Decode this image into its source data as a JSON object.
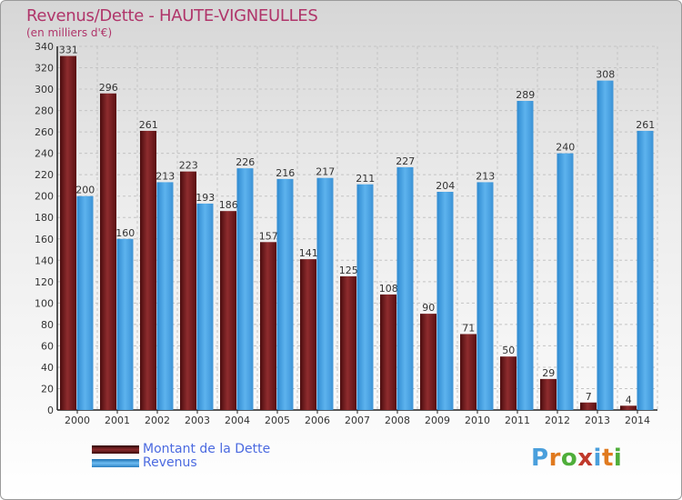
{
  "header": {
    "title": "Revenus/Dette - HAUTE-VIGNEULLES",
    "subtitle": "(en milliers d'€)"
  },
  "chart_data": {
    "type": "bar",
    "title": "Revenus/Dette - HAUTE-VIGNEULLES",
    "subtitle": "(en milliers d'€)",
    "xlabel": "",
    "ylabel": "",
    "ylim": [
      0,
      340
    ],
    "yticks": [
      0,
      20,
      40,
      60,
      80,
      100,
      120,
      140,
      160,
      180,
      200,
      220,
      240,
      260,
      280,
      300,
      320,
      340
    ],
    "categories": [
      "2000",
      "2001",
      "2002",
      "2003",
      "2004",
      "2005",
      "2006",
      "2007",
      "2008",
      "2009",
      "2010",
      "2011",
      "2012",
      "2013",
      "2014"
    ],
    "series": [
      {
        "name": "Montant de la Dette",
        "color": "#7a1a1c",
        "values": [
          331,
          296,
          261,
          223,
          186,
          157,
          141,
          125,
          108,
          90,
          71,
          50,
          29,
          7,
          4
        ]
      },
      {
        "name": "Revenus",
        "color": "#4aa6e6",
        "values": [
          200,
          160,
          213,
          193,
          226,
          216,
          217,
          211,
          227,
          204,
          213,
          289,
          240,
          308,
          261
        ]
      }
    ],
    "legend": "bottom-left",
    "grid": true
  },
  "legend": {
    "items": [
      {
        "label": "Montant de la Dette",
        "color": "#7a1a1c"
      },
      {
        "label": "Revenus",
        "color": "#4aa6e6"
      }
    ]
  },
  "branding": {
    "logo_text": "Proxiti",
    "logo_colors": [
      "#4a9fdc",
      "#e07a1f",
      "#4fae3a",
      "#c0392b",
      "#4a9fdc",
      "#e07a1f",
      "#4fae3a"
    ]
  }
}
